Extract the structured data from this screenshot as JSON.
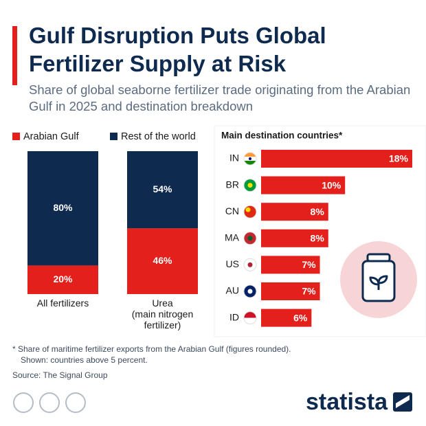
{
  "title": "Gulf Disruption Puts Global Fertilizer Supply at Risk",
  "subtitle": "Share of global seaborne fertilizer trade originating from the Arabian Gulf in 2025 and destination breakdown",
  "footnote": [
    "* Share of maritime fertilizer exports from the Arabian Gulf (figures rounded).",
    "Shown: countries above 5 percent."
  ],
  "source": "Source: The Signal Group",
  "brand": "statista",
  "chart_data": [
    {
      "type": "bar",
      "stacked": true,
      "categories": [
        "All fertilizers",
        "Urea\n(main nitrogen\nfertilizer)"
      ],
      "series": [
        {
          "name": "Arabian Gulf",
          "color": "#e3201b",
          "values": [
            20,
            46
          ],
          "value_labels": [
            "20%",
            "46%"
          ]
        },
        {
          "name": "Rest of the world",
          "color": "#0e2a4f",
          "values": [
            80,
            54
          ],
          "value_labels": [
            "80%",
            "54%"
          ]
        }
      ],
      "ylim": [
        0,
        100
      ]
    },
    {
      "type": "bar",
      "horizontal": true,
      "title": "Main destination countries*",
      "categories": [
        "IN",
        "BR",
        "CN",
        "MA",
        "US",
        "AU",
        "ID"
      ],
      "values": [
        18,
        10,
        8,
        8,
        7,
        7,
        6
      ],
      "value_labels": [
        "18%",
        "10%",
        "8%",
        "8%",
        "7%",
        "7%",
        "6%"
      ],
      "color": "#e3201b",
      "xlim": [
        0,
        18
      ]
    }
  ]
}
